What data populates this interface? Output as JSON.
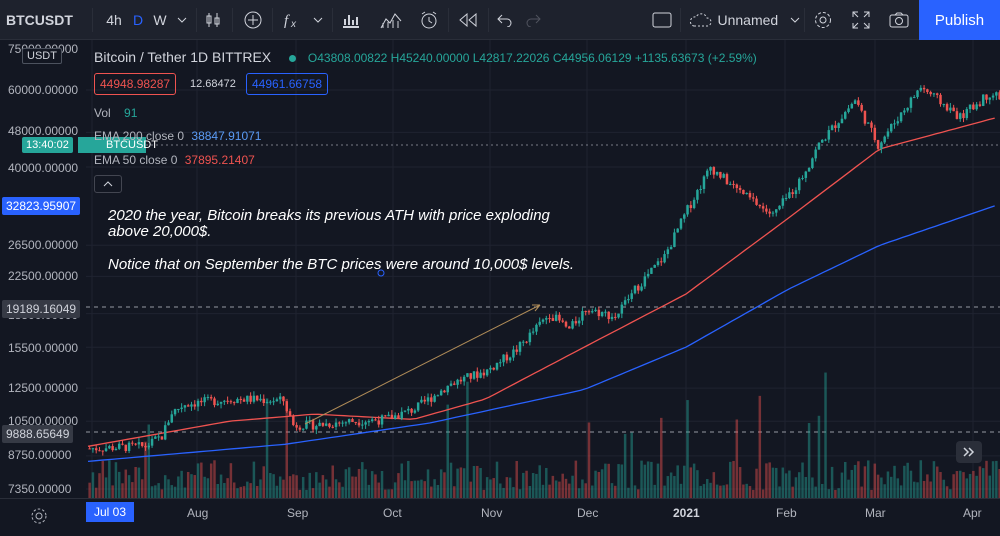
{
  "toolbar": {
    "symbol": "BTCUSDT",
    "intervals": [
      "4h",
      "D",
      "W"
    ],
    "layout_name": "Unnamed",
    "publish_label": "Publish",
    "icons": [
      "candles-icon",
      "add-indicator-icon",
      "fx-icon",
      "chevron-down-icon",
      "bars-icon",
      "templates-icon",
      "alert-icon",
      "replay-icon",
      "undo-icon",
      "redo-icon",
      "layout-icon",
      "cloud-icon",
      "settings-icon",
      "fullscreen-icon",
      "camera-icon"
    ]
  },
  "legend": {
    "title": "Bitcoin / Tether  1D  BITTREX",
    "ohlc": "O43808.00822 H45240.00000 L42817.22026 C44956.06129 +1135.63673 (+2.59%)",
    "bid": "44948.98287",
    "spread": "12.68472",
    "ask": "44961.66758",
    "volume_label": "Vol",
    "volume_value": "91",
    "ema200_label": "EMA 200 close 0",
    "ema200_value": "38847.91071",
    "ema50_label": "EMA 50 close 0",
    "ema50_value": "37895.21407"
  },
  "annotation": {
    "line1": "2020 the year, Bitcoin breaks its previous ATH with price exploding",
    "line2": "above 20,000$.",
    "line3": "Notice that on September  the BTC prices were  around 10,000$ levels."
  },
  "axis": {
    "prices": [
      "75000.00000",
      "60000.00000",
      "48000.00000",
      "40000.00000",
      "26500.00000",
      "22500.00000",
      "18500.00000",
      "15500.00000",
      "12500.00000",
      "10500.00000",
      "8750.00000",
      "7350.00000"
    ],
    "tag_symbol": "USDT",
    "tag_time": "13:40:02",
    "tag_time_symbol": "BTCUSDT",
    "tag_ema200": "32823.95907",
    "tag_crosshair_high": "19189.16049",
    "tag_crosshair_low": "9888.65649"
  },
  "dates": [
    "Jul 03",
    "Aug",
    "Sep",
    "Oct",
    "Nov",
    "Dec",
    "2021",
    "Feb",
    "Mar",
    "Apr"
  ],
  "colors": {
    "bg": "#131722",
    "up": "#26a69a",
    "down": "#ef5350",
    "ema200": "#2962ff",
    "ema50": "#ef5350",
    "accent": "#2962ff"
  },
  "chart_data": {
    "type": "candlestick",
    "title": "Bitcoin / Tether  1D  BITTREX",
    "y_scale": "log",
    "ylim": [
      7000,
      75000
    ],
    "x_labels": [
      "Jul 03",
      "Aug",
      "Sep",
      "Oct",
      "Nov",
      "Dec",
      "2021",
      "Feb",
      "Mar",
      "Apr"
    ],
    "price_path": [
      [
        "2020-07-03",
        9100
      ],
      [
        "2020-07-20",
        9200
      ],
      [
        "2020-07-25",
        9700
      ],
      [
        "2020-07-28",
        11000
      ],
      [
        "2020-08-01",
        11500
      ],
      [
        "2020-08-15",
        11800
      ],
      [
        "2020-08-20",
        11800
      ],
      [
        "2020-08-31",
        11700
      ],
      [
        "2020-09-03",
        10300
      ],
      [
        "2020-09-10",
        10300
      ],
      [
        "2020-09-20",
        10500
      ],
      [
        "2020-10-01",
        10600
      ],
      [
        "2020-10-10",
        11200
      ],
      [
        "2020-10-21",
        12800
      ],
      [
        "2020-11-01",
        13700
      ],
      [
        "2020-11-10",
        15300
      ],
      [
        "2020-11-20",
        18500
      ],
      [
        "2020-11-26",
        17000
      ],
      [
        "2020-12-01",
        19000
      ],
      [
        "2020-12-10",
        18200
      ],
      [
        "2020-12-16",
        21000
      ],
      [
        "2020-12-25",
        25000
      ],
      [
        "2021-01-01",
        32000
      ],
      [
        "2021-01-08",
        40000
      ],
      [
        "2021-01-15",
        36000
      ],
      [
        "2021-01-27",
        31000
      ],
      [
        "2021-02-04",
        37000
      ],
      [
        "2021-02-10",
        45000
      ],
      [
        "2021-02-21",
        57000
      ],
      [
        "2021-02-28",
        45000
      ],
      [
        "2021-03-13",
        61000
      ],
      [
        "2021-03-25",
        52000
      ],
      [
        "2021-04-03",
        59000
      ],
      [
        "2021-04-06",
        58000
      ]
    ],
    "ema50_path": [
      [
        "2020-07-03",
        9200
      ],
      [
        "2020-08-15",
        10500
      ],
      [
        "2020-09-10",
        10900
      ],
      [
        "2020-10-10",
        10600
      ],
      [
        "2020-11-01",
        11800
      ],
      [
        "2020-12-01",
        15500
      ],
      [
        "2021-01-01",
        20500
      ],
      [
        "2021-02-01",
        30500
      ],
      [
        "2021-03-01",
        44000
      ],
      [
        "2021-04-06",
        52000
      ]
    ],
    "ema200_path": [
      [
        "2020-07-03",
        8500
      ],
      [
        "2020-09-01",
        9300
      ],
      [
        "2020-10-15",
        10400
      ],
      [
        "2020-12-01",
        12400
      ],
      [
        "2021-01-01",
        15500
      ],
      [
        "2021-02-01",
        21000
      ],
      [
        "2021-03-01",
        26500
      ],
      [
        "2021-04-06",
        32800
      ]
    ]
  }
}
